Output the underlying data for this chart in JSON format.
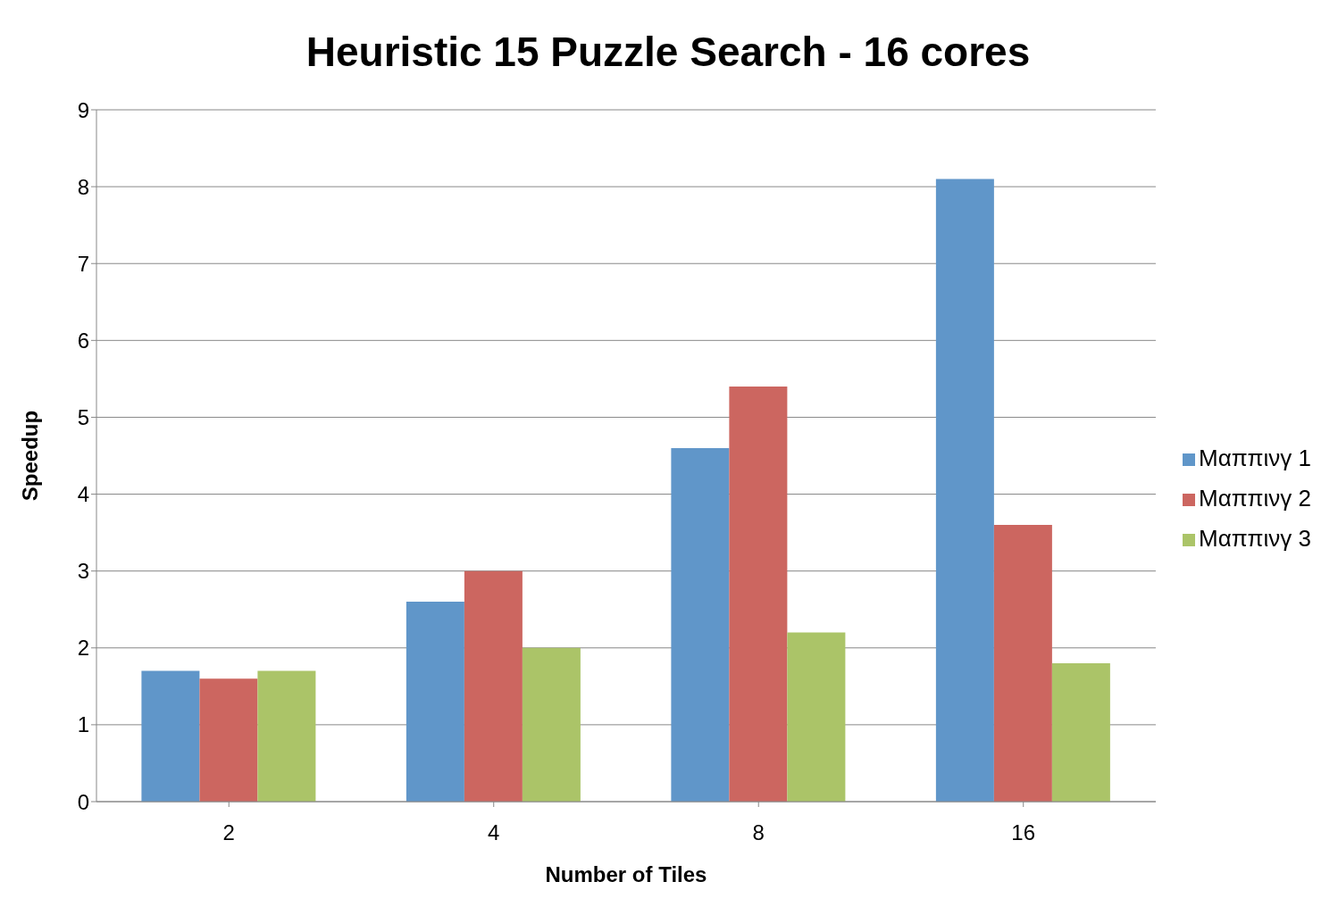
{
  "chart_data": {
    "type": "bar",
    "title": "Heuristic 15 Puzzle Search - 16 cores",
    "xlabel": "Number of Tiles",
    "ylabel": "Speedup",
    "categories": [
      "2",
      "4",
      "8",
      "16"
    ],
    "series": [
      {
        "name": "Μαππινγ 1",
        "color": "#6096c9",
        "values": [
          1.7,
          2.6,
          4.6,
          8.1
        ]
      },
      {
        "name": "Μαππινγ 2",
        "color": "#cc6660",
        "values": [
          1.6,
          3.0,
          5.4,
          3.6
        ]
      },
      {
        "name": "Μαππινγ 3",
        "color": "#abc468",
        "values": [
          1.7,
          2.0,
          2.2,
          1.8
        ]
      }
    ],
    "ylim": [
      0,
      9
    ],
    "yticks": [
      0,
      1,
      2,
      3,
      4,
      5,
      6,
      7,
      8,
      9
    ],
    "grid": "y",
    "legend": "right"
  }
}
